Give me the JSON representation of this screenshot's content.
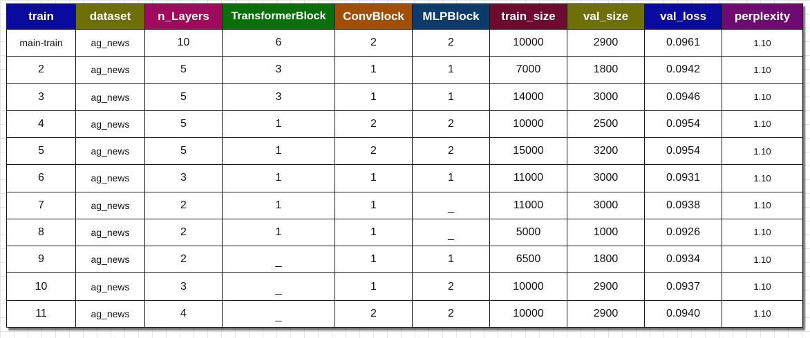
{
  "colors": {
    "train": "#0a0a9e",
    "dataset": "#6f6f0a",
    "n_Layers": "#9e0a5c",
    "TransformerBlock": "#0a6e0a",
    "ConvBlock": "#a04e08",
    "MLPBlock": "#0b3a6b",
    "train_size": "#6e0a2e",
    "val_size": "#6f6f0a",
    "val_loss": "#0a0a9e",
    "perplexity": "#6e0a72"
  },
  "table": {
    "headers": [
      "train",
      "dataset",
      "n_Layers",
      "TransformerBlock",
      "ConvBlock",
      "MLPBlock",
      "train_size",
      "val_size",
      "val_loss",
      "perplexity"
    ],
    "rows": [
      [
        "main-train",
        "ag_news",
        "10",
        "6",
        "2",
        "2",
        "10000",
        "2900",
        "0.0961",
        "1.10"
      ],
      [
        "2",
        "ag_news",
        "5",
        "3",
        "1",
        "1",
        "7000",
        "1800",
        "0.0942",
        "1.10"
      ],
      [
        "3",
        "ag_news",
        "5",
        "3",
        "1",
        "1",
        "14000",
        "3000",
        "0.0946",
        "1.10"
      ],
      [
        "4",
        "ag_news",
        "5",
        "1",
        "2",
        "2",
        "10000",
        "2500",
        "0.0954",
        "1.10"
      ],
      [
        "5",
        "ag_news",
        "5",
        "1",
        "2",
        "2",
        "15000",
        "3200",
        "0.0954",
        "1.10"
      ],
      [
        "6",
        "ag_news",
        "3",
        "1",
        "1",
        "1",
        "11000",
        "3000",
        "0.0931",
        "1.10"
      ],
      [
        "7",
        "ag_news",
        "2",
        "1",
        "1",
        "_",
        "11000",
        "3000",
        "0.0938",
        "1.10"
      ],
      [
        "8",
        "ag_news",
        "2",
        "1",
        "1",
        "_",
        "5000",
        "1000",
        "0.0926",
        "1.10"
      ],
      [
        "9",
        "ag_news",
        "2",
        "_",
        "1",
        "1",
        "6500",
        "1800",
        "0.0934",
        "1.10"
      ],
      [
        "10",
        "ag_news",
        "3",
        "_",
        "1",
        "2",
        "10000",
        "2900",
        "0.0937",
        "1.10"
      ],
      [
        "11",
        "ag_news",
        "4",
        "_",
        "2",
        "2",
        "10000",
        "2900",
        "0.0940",
        "1.10"
      ]
    ]
  }
}
